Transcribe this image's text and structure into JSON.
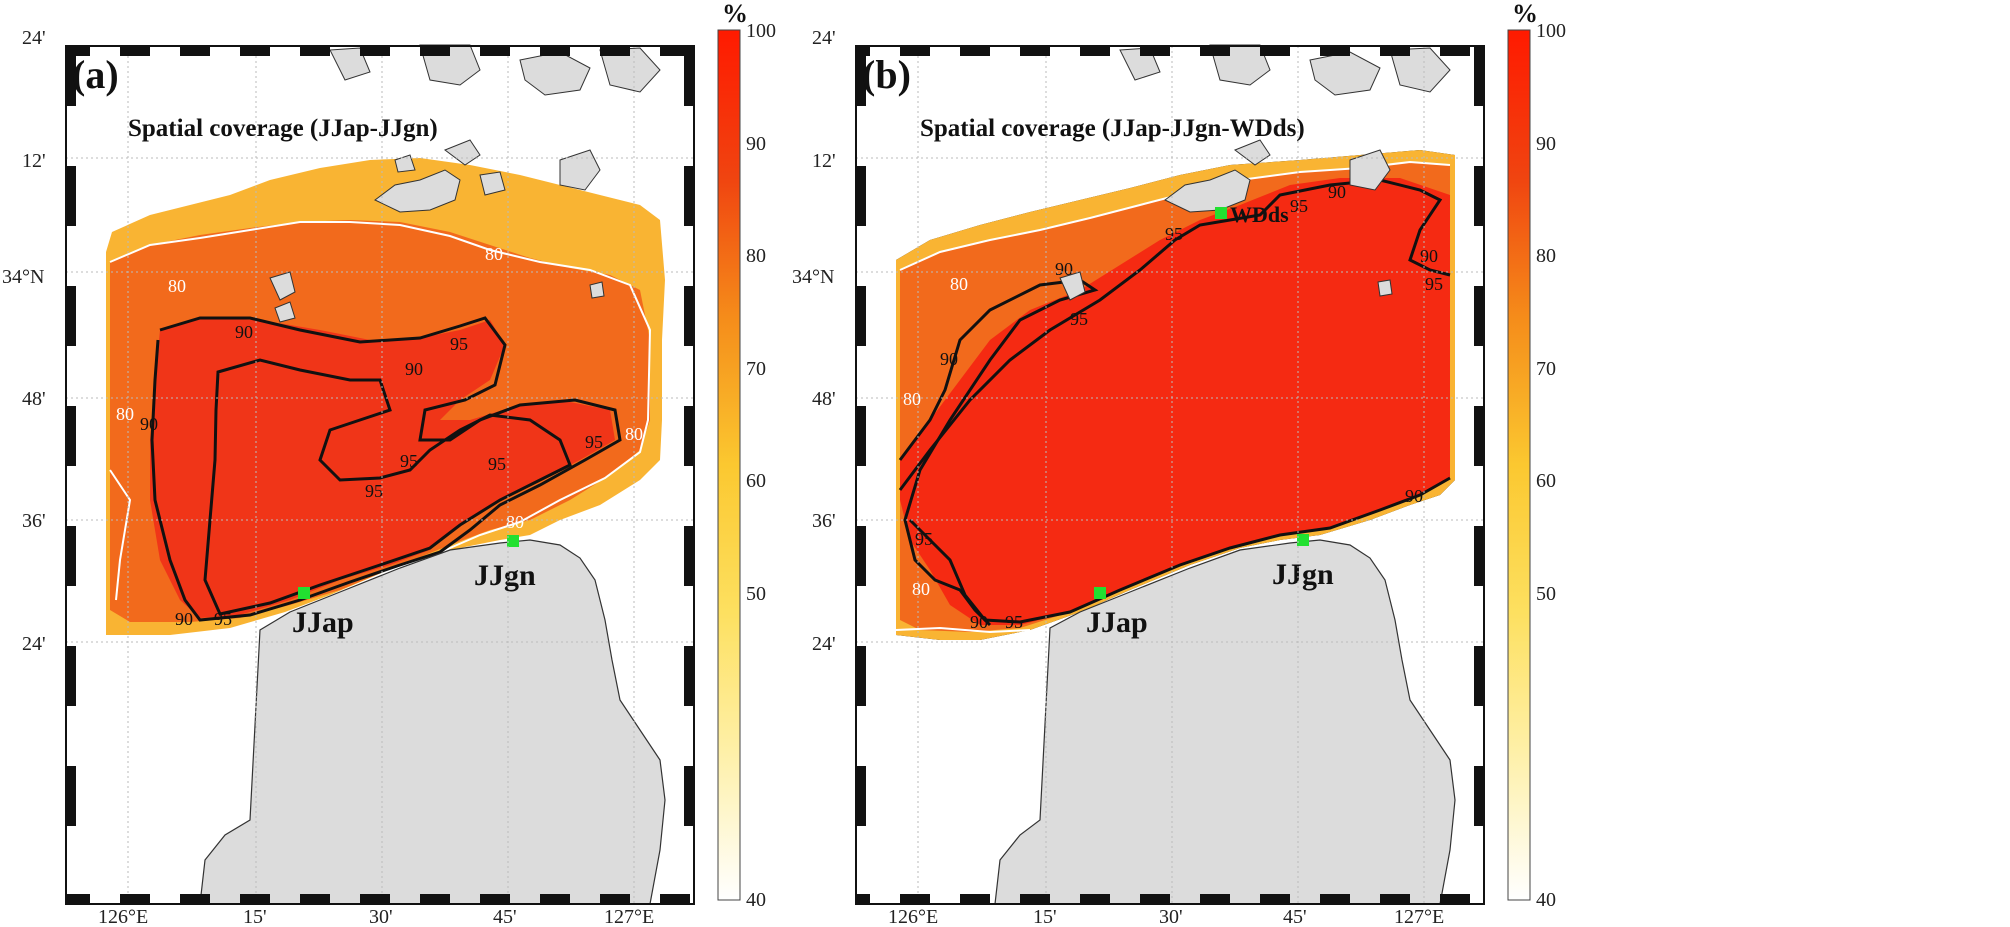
{
  "panels": [
    {
      "id": "a",
      "label": "(a)",
      "title": "Spatial coverage (JJap-JJgn)",
      "stations": [
        {
          "name": "JJap"
        },
        {
          "name": "JJgn"
        }
      ],
      "lon_ticks": [
        "126°E",
        "15'",
        "30'",
        "45'",
        "127°E"
      ],
      "lat_ticks": [
        "24'",
        "12'",
        "34°N",
        "48'",
        "36'",
        "24'"
      ],
      "contour_labels": [
        "80",
        "90",
        "95"
      ]
    },
    {
      "id": "b",
      "label": "(b)",
      "title": "Spatial coverage (JJap-JJgn-WDds)",
      "stations": [
        {
          "name": "JJap"
        },
        {
          "name": "JJgn"
        },
        {
          "name": "WDds"
        }
      ],
      "lon_ticks": [
        "126°E",
        "15'",
        "30'",
        "45'",
        "127°E"
      ],
      "lat_ticks": [
        "24'",
        "12'",
        "34°N",
        "48'",
        "36'",
        "24'"
      ],
      "contour_labels": [
        "80",
        "90",
        "95"
      ]
    }
  ],
  "colorbar": {
    "unit": "%",
    "ticks": [
      "100",
      "90",
      "80",
      "70",
      "60",
      "50",
      "40"
    ],
    "colors": {
      "c100": "#ff1a00",
      "c90": "#f04410",
      "c80": "#f58c1a",
      "c70": "#fbc830",
      "c60": "#fde060",
      "c50": "#fef0a8",
      "c40": "#ffffff"
    }
  },
  "colors": {
    "land": "#dcdcdc",
    "coverage_high": "#f03518",
    "coverage_mid": "#f26a1c",
    "coverage_low": "#f9b433",
    "station_marker": "#22e030"
  }
}
